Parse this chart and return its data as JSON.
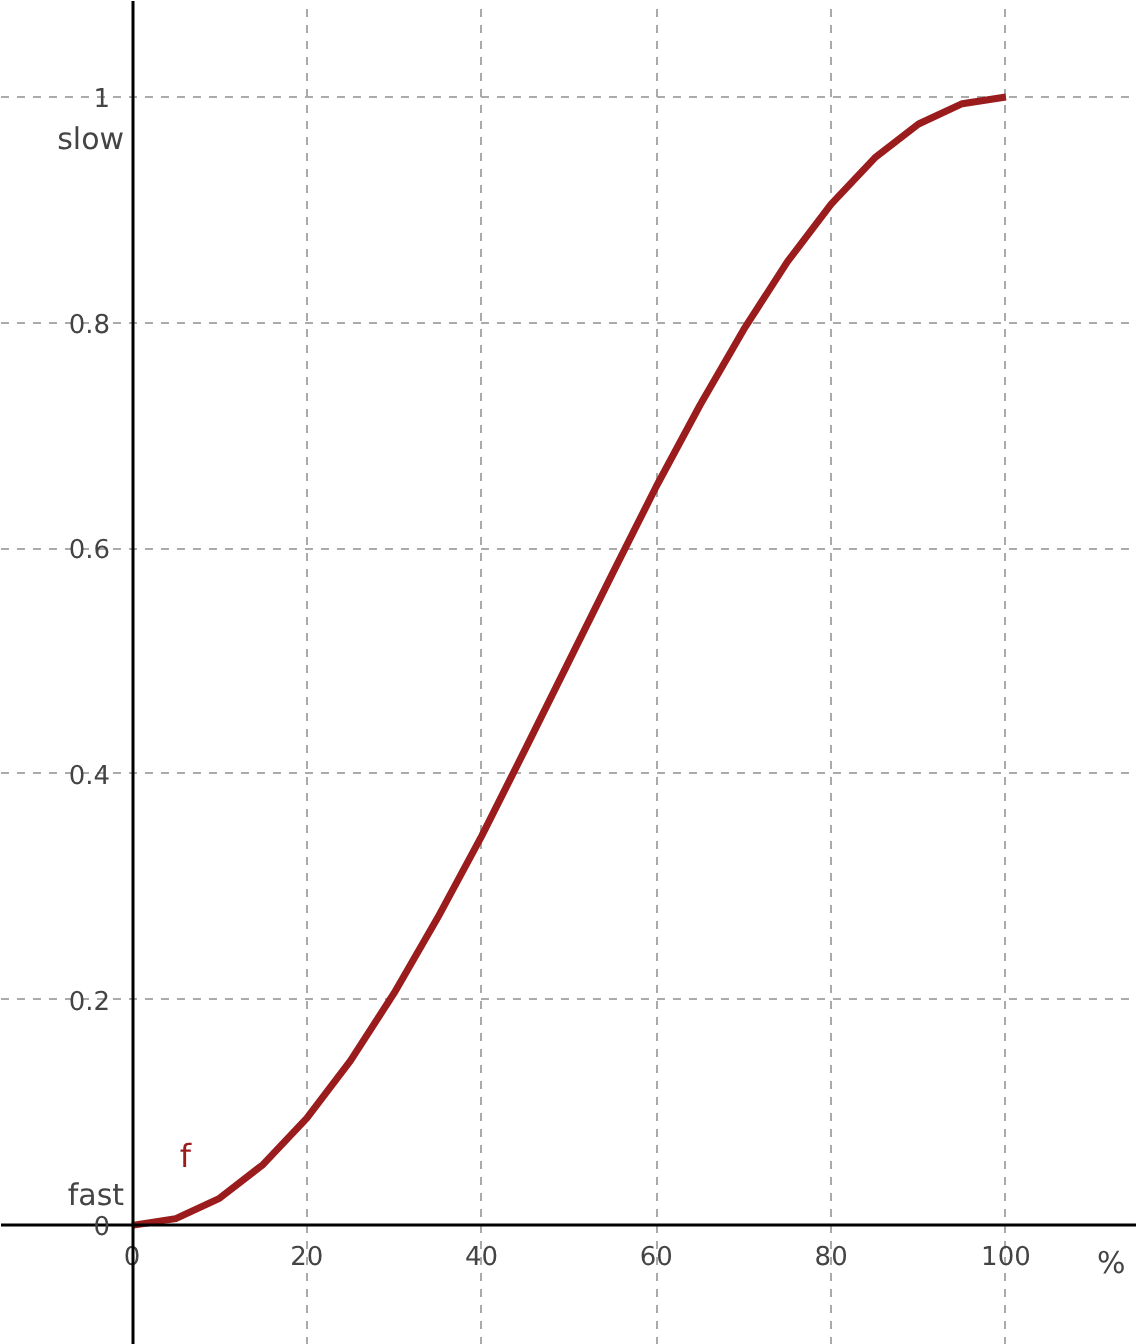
{
  "chart_data": {
    "type": "line",
    "xlabel": "%",
    "x": [
      0,
      5,
      10,
      15,
      20,
      25,
      30,
      35,
      40,
      45,
      50,
      55,
      60,
      65,
      70,
      75,
      80,
      85,
      90,
      95,
      100
    ],
    "series": [
      {
        "name": "f",
        "color": "#9b1c1c",
        "values": [
          0,
          0.006,
          0.024,
          0.054,
          0.095,
          0.146,
          0.206,
          0.273,
          0.345,
          0.422,
          0.5,
          0.578,
          0.655,
          0.727,
          0.794,
          0.854,
          0.905,
          0.946,
          0.976,
          0.994,
          1
        ]
      }
    ],
    "xlim": [
      -15,
      115
    ],
    "ylim": [
      -0.106,
      1.085
    ],
    "xticks": [
      0,
      20,
      40,
      60,
      80,
      100
    ],
    "yticks": [
      0,
      0.2,
      0.4,
      0.6,
      0.8,
      1
    ],
    "grid": true,
    "line_style": "solid",
    "marker": "none",
    "annotations": [
      "slow",
      "fast"
    ]
  }
}
